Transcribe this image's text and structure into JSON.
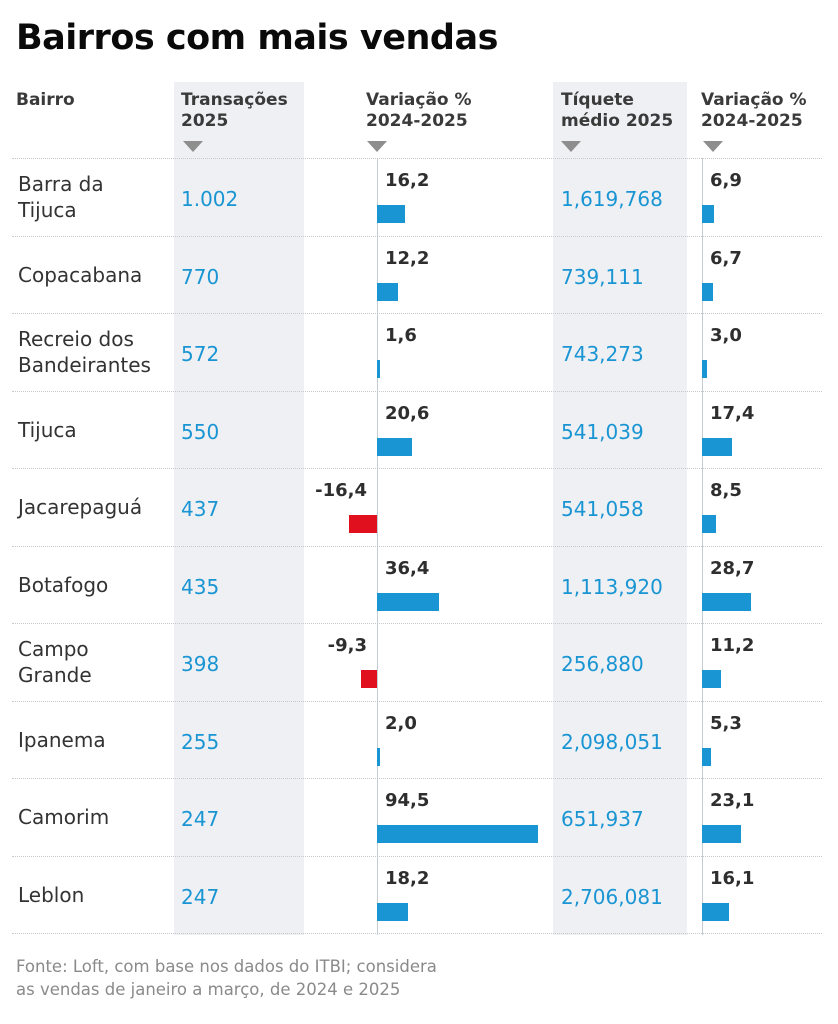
{
  "title": "Bairros com mais vendas",
  "headers": {
    "bairro": "Bairro",
    "transacoes": "Transações\n2025",
    "variacao1": "Variação %\n2024-2025",
    "tiquete": "Tíquete\nmédio 2025",
    "variacao2": "Variação %\n2024-2025"
  },
  "footnote": "Fonte: Loft, com base nos dados do ITBI; considera\nas vendas de janeiro a março, de 2024 e 2025",
  "colors": {
    "positive": "#1a95d3",
    "negative": "#e0101e",
    "value_text": "#1a95d3",
    "band": "#eef0f3"
  },
  "chart_data": {
    "type": "table",
    "title": "Bairros com mais vendas",
    "columns": [
      "Bairro",
      "Transações 2025",
      "Variação % 2024-2025",
      "Tíquete médio 2025",
      "Variação % 2024-2025"
    ],
    "sort_indicators": [
      "Transações 2025",
      "Variação % 2024-2025",
      "Tíquete médio 2025",
      "Variação % 2024-2025"
    ],
    "rows": [
      {
        "bairro": "Barra da\nTijuca",
        "transacoes": "1.002",
        "var_trans": 16.2,
        "var_trans_label": "16,2",
        "tiquete": "1,619,768",
        "var_tiq": 6.9,
        "var_tiq_label": "6,9"
      },
      {
        "bairro": "Copacabana",
        "transacoes": "770",
        "var_trans": 12.2,
        "var_trans_label": "12,2",
        "tiquete": "739,111",
        "var_tiq": 6.7,
        "var_tiq_label": "6,7"
      },
      {
        "bairro": "Recreio dos\nBandeirantes",
        "transacoes": "572",
        "var_trans": 1.6,
        "var_trans_label": "1,6",
        "tiquete": "743,273",
        "var_tiq": 3.0,
        "var_tiq_label": "3,0"
      },
      {
        "bairro": "Tijuca",
        "transacoes": "550",
        "var_trans": 20.6,
        "var_trans_label": "20,6",
        "tiquete": "541,039",
        "var_tiq": 17.4,
        "var_tiq_label": "17,4"
      },
      {
        "bairro": "Jacarepaguá",
        "transacoes": "437",
        "var_trans": -16.4,
        "var_trans_label": "-16,4",
        "tiquete": "541,058",
        "var_tiq": 8.5,
        "var_tiq_label": "8,5"
      },
      {
        "bairro": "Botafogo",
        "transacoes": "435",
        "var_trans": 36.4,
        "var_trans_label": "36,4",
        "tiquete": "1,113,920",
        "var_tiq": 28.7,
        "var_tiq_label": "28,7"
      },
      {
        "bairro": "Campo\nGrande",
        "transacoes": "398",
        "var_trans": -9.3,
        "var_trans_label": "-9,3",
        "tiquete": "256,880",
        "var_tiq": 11.2,
        "var_tiq_label": "11,2"
      },
      {
        "bairro": "Ipanema",
        "transacoes": "255",
        "var_trans": 2.0,
        "var_trans_label": "2,0",
        "tiquete": "2,098,051",
        "var_tiq": 5.3,
        "var_tiq_label": "5,3"
      },
      {
        "bairro": "Camorim",
        "transacoes": "247",
        "var_trans": 94.5,
        "var_trans_label": "94,5",
        "tiquete": "651,937",
        "var_tiq": 23.1,
        "var_tiq_label": "23,1"
      },
      {
        "bairro": "Leblon",
        "transacoes": "247",
        "var_trans": 18.2,
        "var_trans_label": "18,2",
        "tiquete": "2,706,081",
        "var_tiq": 16.1,
        "var_tiq_label": "16,1"
      }
    ]
  }
}
